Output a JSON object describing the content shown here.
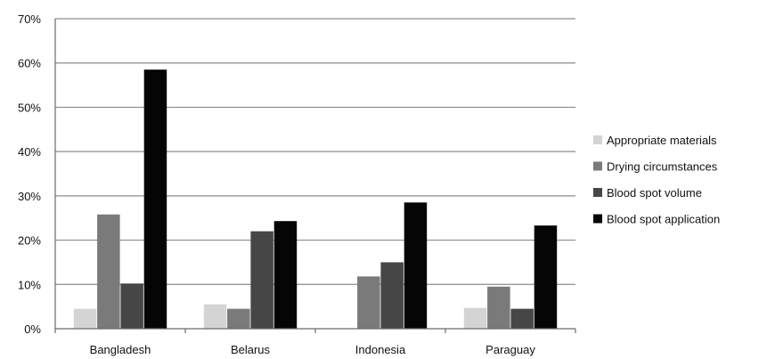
{
  "chart_data": {
    "type": "bar",
    "categories": [
      "Bangladesh",
      "Belarus",
      "Indonesia",
      "Paraguay"
    ],
    "series": [
      {
        "name": "Appropriate materials",
        "color": "#d4d4d4",
        "values": [
          4.5,
          5.5,
          0,
          4.7
        ]
      },
      {
        "name": "Drying circumstances",
        "color": "#7a7a7a",
        "values": [
          25.8,
          4.5,
          11.8,
          9.5
        ]
      },
      {
        "name": "Blood spot volume",
        "color": "#464646",
        "values": [
          10.2,
          22.0,
          15.0,
          4.5
        ]
      },
      {
        "name": "Blood spot application",
        "color": "#050505",
        "values": [
          58.5,
          24.3,
          28.5,
          23.3
        ]
      }
    ],
    "ylim": [
      0,
      70
    ],
    "yticks": [
      "0%",
      "10%",
      "20%",
      "30%",
      "40%",
      "50%",
      "60%",
      "70%"
    ],
    "grid": true,
    "legend": "right"
  }
}
